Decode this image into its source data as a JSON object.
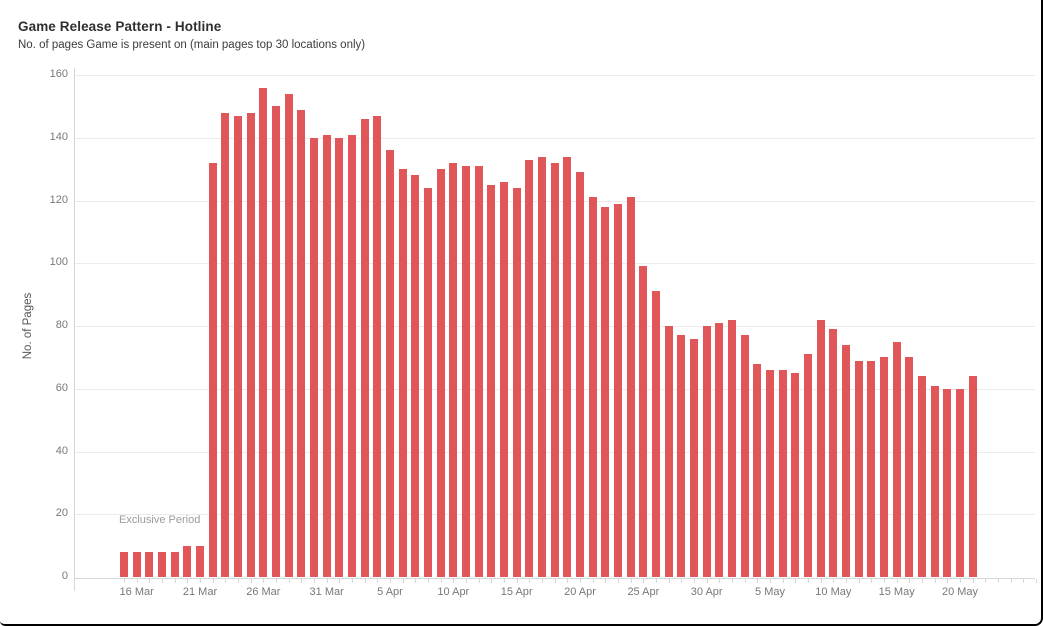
{
  "header": {
    "title": "Game Release Pattern - Hotline",
    "subtitle": "No. of pages Game is present on (main pages top 30 locations only)"
  },
  "annotation": {
    "label": "Exclusive Period"
  },
  "colors": {
    "bar": "#e15759",
    "gridline": "#ececec",
    "axis_line": "#d6d6d6",
    "tick_label": "#787878",
    "title_text": "#2f2f2f",
    "annotation_text": "#9c9c9c"
  },
  "chart_data": {
    "type": "bar",
    "title": "Game Release Pattern - Hotline",
    "subtitle": "No. of pages Game is present on (main pages top 30 locations only)",
    "xlabel": "",
    "ylabel": "No. of Pages",
    "ylim": [
      0,
      160
    ],
    "y_ticks": [
      0,
      20,
      40,
      60,
      80,
      100,
      120,
      140,
      160
    ],
    "grid": "horizontal",
    "legend": "none",
    "annotation": "Exclusive Period",
    "x_tick_labels": [
      "16 Mar",
      "21 Mar",
      "26 Mar",
      "31 Mar",
      "5 Apr",
      "10 Apr",
      "15 Apr",
      "20 Apr",
      "25 Apr",
      "30 Apr",
      "5 May",
      "10 May",
      "15 May",
      "20 May"
    ],
    "categories": [
      "15 Mar",
      "16 Mar",
      "17 Mar",
      "18 Mar",
      "19 Mar",
      "20 Mar",
      "21 Mar",
      "22 Mar",
      "23 Mar",
      "24 Mar",
      "25 Mar",
      "26 Mar",
      "27 Mar",
      "28 Mar",
      "29 Mar",
      "30 Mar",
      "31 Mar",
      "1 Apr",
      "2 Apr",
      "3 Apr",
      "4 Apr",
      "5 Apr",
      "6 Apr",
      "7 Apr",
      "8 Apr",
      "9 Apr",
      "10 Apr",
      "11 Apr",
      "12 Apr",
      "13 Apr",
      "14 Apr",
      "15 Apr",
      "16 Apr",
      "17 Apr",
      "18 Apr",
      "19 Apr",
      "20 Apr",
      "21 Apr",
      "22 Apr",
      "23 Apr",
      "24 Apr",
      "25 Apr",
      "26 Apr",
      "27 Apr",
      "28 Apr",
      "29 Apr",
      "30 Apr",
      "1 May",
      "2 May",
      "3 May",
      "4 May",
      "5 May",
      "6 May",
      "7 May",
      "8 May",
      "9 May",
      "10 May",
      "11 May",
      "12 May",
      "13 May",
      "14 May",
      "15 May",
      "16 May",
      "17 May",
      "18 May",
      "19 May",
      "20 May",
      "21 May"
    ],
    "values": [
      8,
      8,
      8,
      8,
      8,
      10,
      10,
      132,
      148,
      147,
      148,
      156,
      150,
      154,
      149,
      140,
      141,
      140,
      141,
      146,
      147,
      136,
      130,
      128,
      124,
      130,
      132,
      131,
      131,
      125,
      126,
      124,
      133,
      134,
      132,
      134,
      129,
      121,
      118,
      119,
      121,
      99,
      91,
      80,
      77,
      76,
      80,
      81,
      82,
      77,
      68,
      66,
      66,
      65,
      71,
      82,
      79,
      74,
      69,
      69,
      70,
      75,
      70,
      64,
      61,
      60,
      60,
      64
    ]
  }
}
